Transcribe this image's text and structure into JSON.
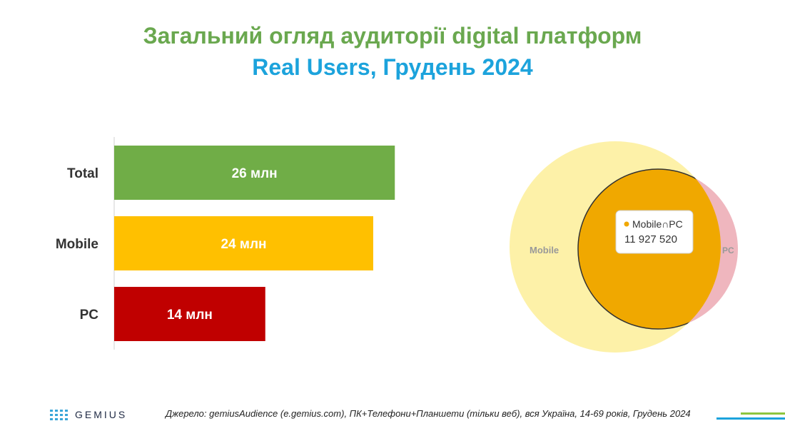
{
  "header": {
    "title_line1": "Загальний огляд аудиторії digital платформ",
    "title_line2": "Real Users, Грудень 2024"
  },
  "chart_data": [
    {
      "type": "bar",
      "orientation": "horizontal",
      "categories": [
        "Total",
        "Mobile",
        "PC"
      ],
      "values": [
        26,
        24,
        14
      ],
      "data_labels": [
        "26 млн",
        "24 млн",
        "14 млн"
      ],
      "colors": [
        "#70ad47",
        "#ffc000",
        "#c00000"
      ],
      "xlim": [
        0,
        40
      ],
      "grid": false
    },
    {
      "type": "venn",
      "sets": [
        {
          "name": "Mobile",
          "value": 24,
          "color": "#fdf1a8"
        },
        {
          "name": "PC",
          "value": 14,
          "color": "#efb6be"
        }
      ],
      "intersection": {
        "label": "Mobile∩PC",
        "value": "11 927 520",
        "color": "#f0a800"
      }
    }
  ],
  "footer": {
    "source": "Джерело: gemiusAudience (e.gemius.com), ПК+Телефони+Планшети (тільки веб), вся Україна, 14-69 років, Грудень 2024",
    "logo_text": "GEMIUS"
  },
  "colors": {
    "title_green": "#6aa84f",
    "title_blue": "#1ca3dc",
    "line_green": "#8dc63f",
    "line_blue": "#1ca3dc"
  }
}
